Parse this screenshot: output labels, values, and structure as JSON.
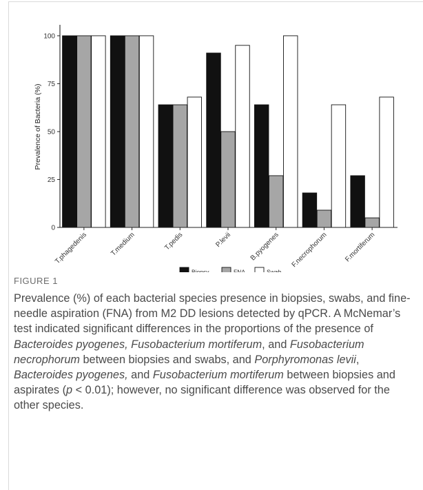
{
  "chart_data": {
    "type": "bar",
    "categories": [
      "T.phagedenis",
      "T.medium",
      "T.pedis",
      "P.levii",
      "B.pyogenes",
      "F.necrophorum",
      "F.mortiferum"
    ],
    "series": [
      {
        "name": "Biopsy",
        "color": "#111111",
        "values": [
          100,
          100,
          64,
          91,
          64,
          18,
          27
        ]
      },
      {
        "name": "FNA",
        "color": "#a6a6a6",
        "values": [
          100,
          100,
          64,
          50,
          27,
          9,
          5
        ]
      },
      {
        "name": "Swab",
        "color": "#ffffff",
        "values": [
          100,
          100,
          68,
          95,
          100,
          64,
          68
        ]
      }
    ],
    "ylabel": "Prevalence of Bacteria (%)",
    "xlabel": "",
    "ylim": [
      0,
      105
    ],
    "yticks": [
      "0",
      "25",
      "50",
      "75",
      "100"
    ],
    "legend_position": "bottom"
  },
  "figure": {
    "label": "FIGURE 1",
    "caption": [
      {
        "text": "Prevalence (%) of each bacterial species presence in biopsies, swabs, and fine-needle aspiration (FNA) from M2 DD lesions detected by qPCR. A McNemar’s test indicated significant differences in the proportions of the presence of ",
        "italic": false
      },
      {
        "text": "Bacteroides pyogenes, Fusobacterium mortiferum",
        "italic": true
      },
      {
        "text": ", and ",
        "italic": false
      },
      {
        "text": "Fusobacterium necrophorum",
        "italic": true
      },
      {
        "text": " between biopsies and swabs, and ",
        "italic": false
      },
      {
        "text": "Porphyromonas levii",
        "italic": true
      },
      {
        "text": ", ",
        "italic": false
      },
      {
        "text": "Bacteroides pyogenes,",
        "italic": true
      },
      {
        "text": " and ",
        "italic": false
      },
      {
        "text": "Fusobacterium mortiferum",
        "italic": true
      },
      {
        "text": " between biopsies and aspirates (",
        "italic": false
      },
      {
        "text": "p",
        "italic": true
      },
      {
        "text": " < 0.01); however, no significant difference was observed for the other species.",
        "italic": false
      }
    ]
  }
}
